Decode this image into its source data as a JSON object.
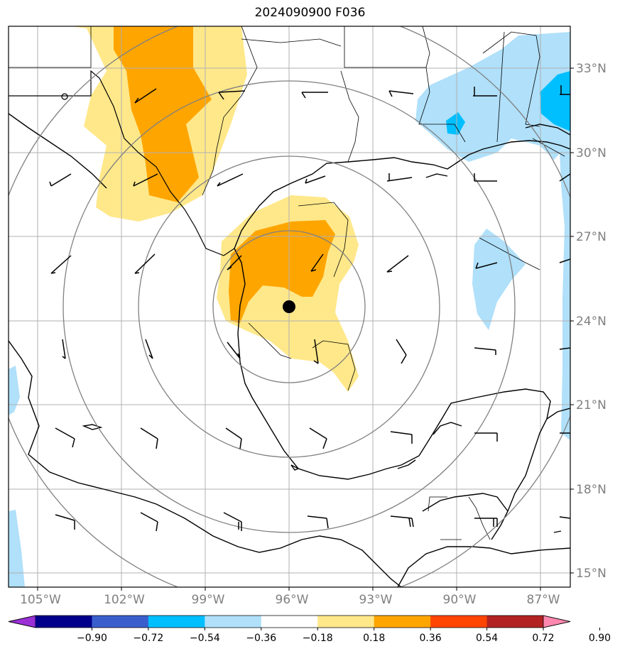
{
  "title": "2024090900 F036",
  "lon_labels": [
    "105°W",
    "102°W",
    "99°W",
    "96°W",
    "93°W",
    "90°W",
    "87°W"
  ],
  "lat_labels": [
    "33°N",
    "30°N",
    "27°N",
    "24°N",
    "21°N",
    "18°N",
    "15°N"
  ],
  "colorbar": {
    "ticks": [
      "−0.90",
      "−0.72",
      "−0.54",
      "−0.36",
      "−0.18",
      "0.18",
      "0.36",
      "0.54",
      "0.72",
      "0.90"
    ],
    "colors": [
      "#9a30d6",
      "#00008b",
      "#3a5fcd",
      "#00bfff",
      "#b0e0fa",
      "#ffffff",
      "#ffe88a",
      "#ffa500",
      "#ff4500",
      "#b22222",
      "#ff88b0"
    ]
  },
  "storm_center": {
    "label": "storm-center",
    "lon": "96°W",
    "lat": "24.5°N"
  },
  "range_rings": [
    "inner ring",
    "ring 2",
    "ring 3",
    "outer ring"
  ]
}
